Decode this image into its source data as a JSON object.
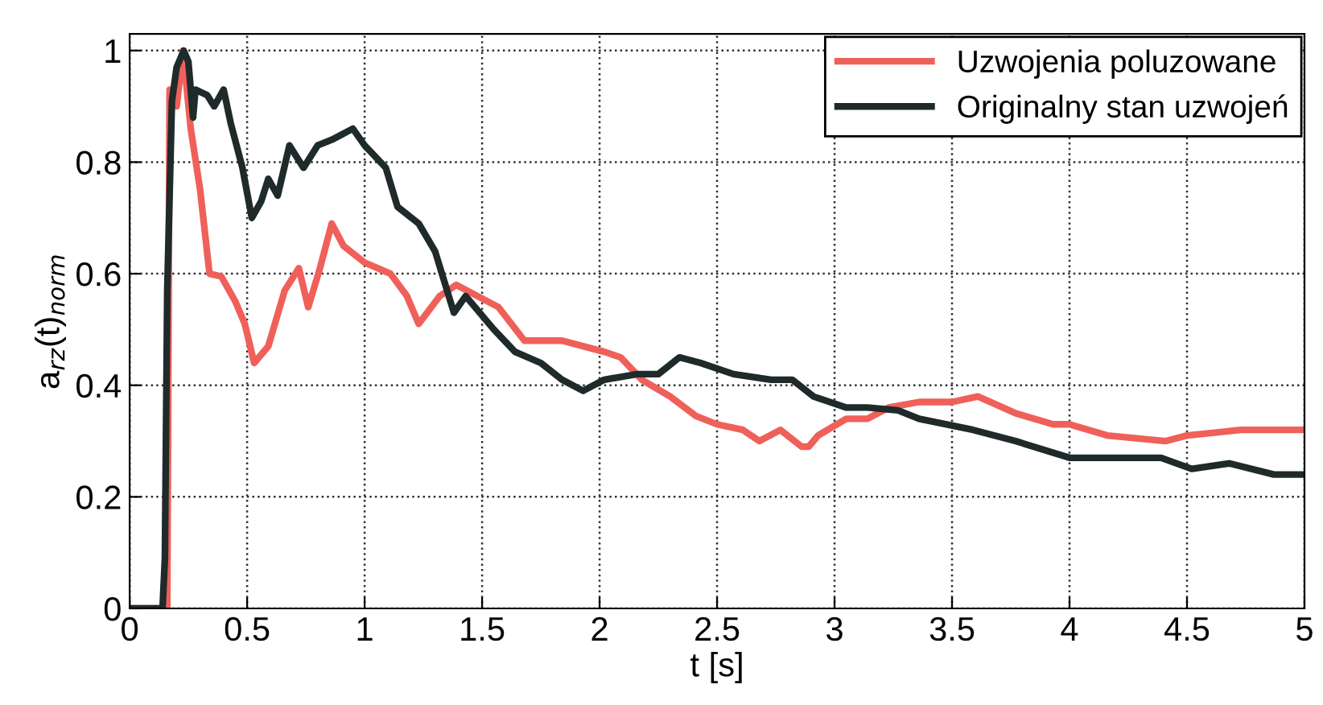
{
  "chart_data": {
    "type": "line",
    "xlabel": "t [s]",
    "ylabel": "a$_{rz}$(t)$_{norm}$",
    "xlim": [
      0,
      5
    ],
    "ylim": [
      0,
      1.03
    ],
    "xticks": [
      0,
      0.5,
      1,
      1.5,
      2,
      2.5,
      3,
      3.5,
      4,
      4.5,
      5
    ],
    "yticks": [
      0,
      0.2,
      0.4,
      0.6,
      0.8,
      1
    ],
    "grid": true,
    "legend": "top right",
    "line_style": "solid",
    "marker": "none",
    "series": [
      {
        "name": "Uzwojenia poluzowane",
        "color": "#f0605a",
        "x": [
          0,
          0.16,
          0.17,
          0.2,
          0.227,
          0.26,
          0.3,
          0.34,
          0.39,
          0.45,
          0.49,
          0.53,
          0.59,
          0.66,
          0.72,
          0.76,
          0.81,
          0.86,
          0.91,
          1.0,
          1.11,
          1.18,
          1.23,
          1.32,
          1.39,
          1.48,
          1.57,
          1.68,
          1.84,
          2.02,
          2.09,
          2.18,
          2.3,
          2.41,
          2.5,
          2.61,
          2.68,
          2.77,
          2.86,
          2.89,
          2.93,
          3.05,
          3.14,
          3.23,
          3.36,
          3.5,
          3.61,
          3.77,
          3.93,
          4.0,
          4.16,
          4.41,
          4.5,
          4.73,
          4.87,
          5.0
        ],
        "values": [
          0,
          0,
          0.93,
          0.9,
          1.0,
          0.86,
          0.75,
          0.6,
          0.595,
          0.55,
          0.51,
          0.44,
          0.47,
          0.57,
          0.61,
          0.54,
          0.61,
          0.69,
          0.65,
          0.62,
          0.6,
          0.56,
          0.51,
          0.56,
          0.58,
          0.56,
          0.54,
          0.48,
          0.48,
          0.46,
          0.45,
          0.41,
          0.38,
          0.345,
          0.33,
          0.32,
          0.3,
          0.32,
          0.29,
          0.29,
          0.31,
          0.34,
          0.34,
          0.36,
          0.37,
          0.37,
          0.38,
          0.35,
          0.33,
          0.33,
          0.31,
          0.3,
          0.31,
          0.32,
          0.32,
          0.32
        ]
      },
      {
        "name": "Originalny stan uzwojeń",
        "color": "#1f2a2a",
        "x": [
          0,
          0.14,
          0.15,
          0.16,
          0.18,
          0.2,
          0.23,
          0.25,
          0.27,
          0.28,
          0.33,
          0.36,
          0.4,
          0.43,
          0.48,
          0.52,
          0.56,
          0.59,
          0.63,
          0.68,
          0.74,
          0.8,
          0.86,
          0.95,
          1.0,
          1.09,
          1.14,
          1.23,
          1.3,
          1.34,
          1.38,
          1.43,
          1.55,
          1.64,
          1.75,
          1.84,
          1.93,
          2.02,
          2.16,
          2.25,
          2.34,
          2.43,
          2.57,
          2.73,
          2.82,
          2.91,
          3.05,
          3.14,
          3.27,
          3.36,
          3.59,
          3.77,
          4.0,
          4.2,
          4.39,
          4.52,
          4.68,
          4.87,
          5.0
        ],
        "values": [
          0,
          0,
          0.09,
          0.57,
          0.91,
          0.97,
          1.0,
          0.98,
          0.88,
          0.93,
          0.92,
          0.9,
          0.93,
          0.87,
          0.79,
          0.7,
          0.73,
          0.77,
          0.74,
          0.83,
          0.79,
          0.83,
          0.84,
          0.86,
          0.83,
          0.79,
          0.72,
          0.69,
          0.64,
          0.585,
          0.53,
          0.56,
          0.5,
          0.46,
          0.44,
          0.41,
          0.39,
          0.41,
          0.42,
          0.42,
          0.45,
          0.44,
          0.42,
          0.41,
          0.41,
          0.38,
          0.36,
          0.36,
          0.355,
          0.34,
          0.32,
          0.3,
          0.27,
          0.27,
          0.27,
          0.25,
          0.26,
          0.24,
          0.24
        ]
      }
    ]
  }
}
